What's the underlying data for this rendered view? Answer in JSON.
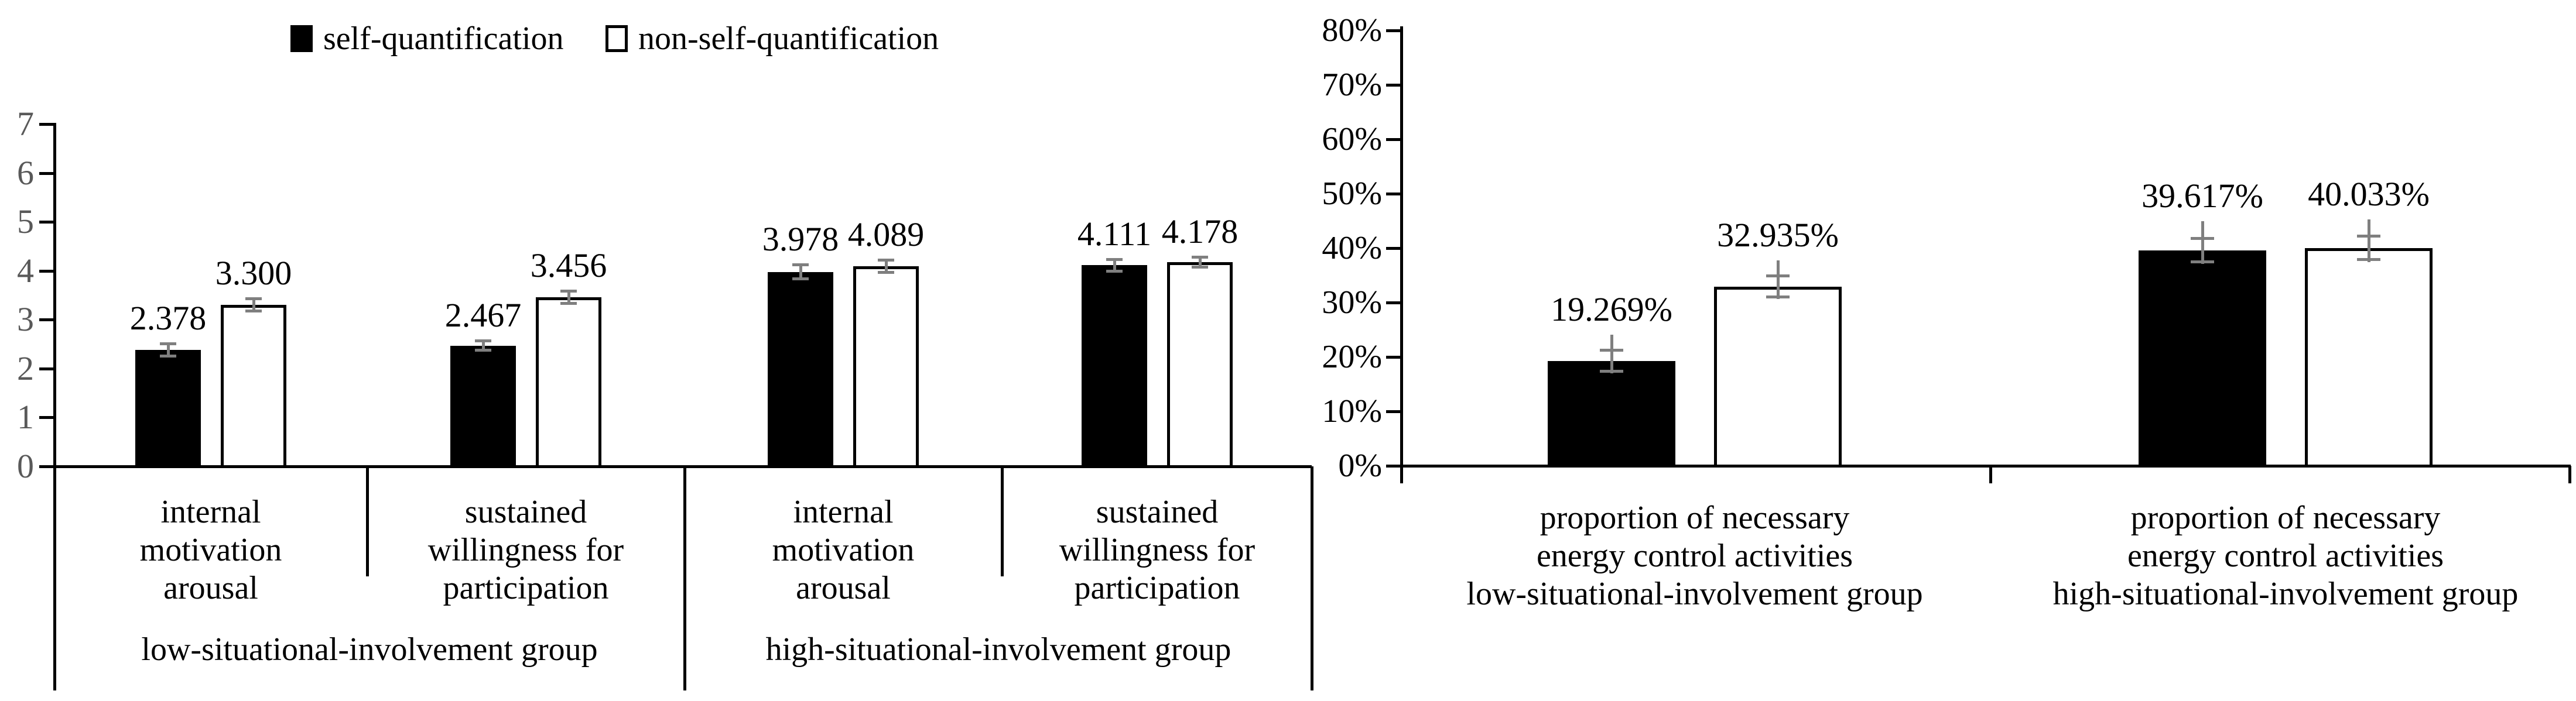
{
  "legend": {
    "items": [
      {
        "label": "self-quantification",
        "fill": "#000000"
      },
      {
        "label": "non-self-quantification",
        "fill": "#ffffff"
      }
    ]
  },
  "colors": {
    "background": "#ffffff",
    "axis": "#000000",
    "bar_self_quantification": "#000000",
    "bar_non_self_quantification": "#ffffff",
    "bar_outline": "#000000",
    "error_bar": "#7f7f7f",
    "left_tick_labels": "#595959",
    "right_tick_labels": "#000000",
    "text": "#000000"
  },
  "chart_data": [
    {
      "type": "bar",
      "title": "",
      "xlabel": "",
      "ylabel": "",
      "ylim": [
        0,
        7
      ],
      "grid": false,
      "legend_position": "top",
      "y_ticks": [
        "0",
        "1",
        "2",
        "3",
        "4",
        "5",
        "6",
        "7"
      ],
      "series_names": [
        "self-quantification",
        "non-self-quantification"
      ],
      "groups": [
        {
          "label": "low-situational-involvement group",
          "categories": [
            {
              "label": "internal motivation arousal",
              "label_lines": [
                "internal",
                "motivation",
                "arousal"
              ],
              "bars": [
                {
                  "series": "self-quantification",
                  "value": 2.378,
                  "display": "2.378",
                  "error": 0.13
                },
                {
                  "series": "non-self-quantification",
                  "value": 3.3,
                  "display": "3.300",
                  "error": 0.13
                }
              ]
            },
            {
              "label": "sustained willingness for participation",
              "label_lines": [
                "sustained",
                "willingness for",
                "participation"
              ],
              "bars": [
                {
                  "series": "self-quantification",
                  "value": 2.467,
                  "display": "2.467",
                  "error": 0.1
                },
                {
                  "series": "non-self-quantification",
                  "value": 3.456,
                  "display": "3.456",
                  "error": 0.13
                }
              ]
            }
          ]
        },
        {
          "label": "high-situational-involvement group",
          "categories": [
            {
              "label": "internal motivation arousal",
              "label_lines": [
                "internal",
                "motivation",
                "arousal"
              ],
              "bars": [
                {
                  "series": "self-quantification",
                  "value": 3.978,
                  "display": "3.978",
                  "error": 0.15
                },
                {
                  "series": "non-self-quantification",
                  "value": 4.089,
                  "display": "4.089",
                  "error": 0.13
                }
              ]
            },
            {
              "label": "sustained willingness for participation",
              "label_lines": [
                "sustained",
                "willingness for",
                "participation"
              ],
              "bars": [
                {
                  "series": "self-quantification",
                  "value": 4.111,
                  "display": "4.111",
                  "error": 0.13
                },
                {
                  "series": "non-self-quantification",
                  "value": 4.178,
                  "display": "4.178",
                  "error": 0.11
                }
              ]
            }
          ]
        }
      ]
    },
    {
      "type": "bar",
      "title": "",
      "xlabel": "",
      "ylabel": "",
      "unit": "%",
      "ylim": [
        0,
        80
      ],
      "grid": false,
      "y_ticks": [
        "0%",
        "10%",
        "20%",
        "30%",
        "40%",
        "50%",
        "60%",
        "70%",
        "80%"
      ],
      "series_names": [
        "self-quantification",
        "non-self-quantification"
      ],
      "groups": [
        {
          "label": "low-situational-involvement group",
          "categories": [
            {
              "label": "proportion of necessary energy control activities",
              "label_lines": [
                "proportion of necessary",
                "energy control activities"
              ],
              "bars": [
                {
                  "series": "self-quantification",
                  "value": 19.269,
                  "display": "19.269%",
                  "error": 2.0
                },
                {
                  "series": "non-self-quantification",
                  "value": 32.935,
                  "display": "32.935%",
                  "error": 2.0
                }
              ]
            }
          ]
        },
        {
          "label": "high-situational-involvement group",
          "categories": [
            {
              "label": "proportion of necessary energy control activities",
              "label_lines": [
                "proportion of necessary",
                "energy control activities"
              ],
              "bars": [
                {
                  "series": "self-quantification",
                  "value": 39.617,
                  "display": "39.617%",
                  "error": 2.2
                },
                {
                  "series": "non-self-quantification",
                  "value": 40.033,
                  "display": "40.033%",
                  "error": 2.2
                }
              ]
            }
          ]
        }
      ]
    }
  ]
}
